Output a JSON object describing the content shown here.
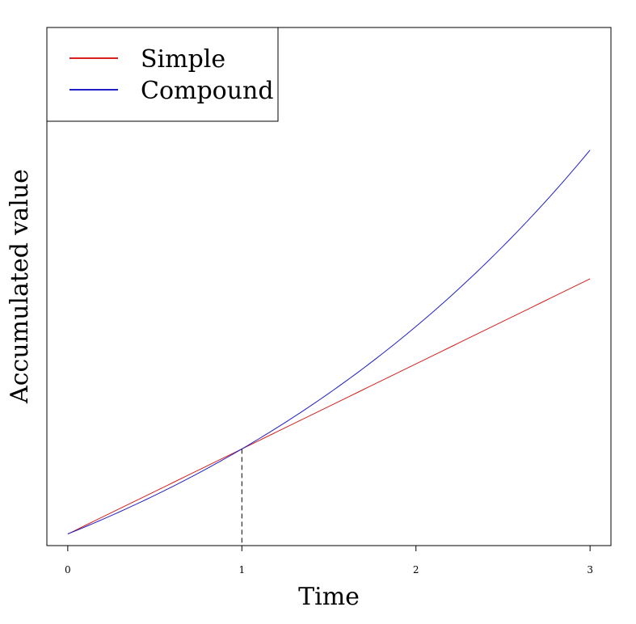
{
  "chart_data": {
    "type": "line",
    "xlabel": "Time",
    "ylabel": "Accumulated value",
    "xlim": [
      -0.12,
      3.12
    ],
    "ylim": [
      0.94,
      3.62
    ],
    "x_ticks": [
      0,
      1,
      2,
      3
    ],
    "x_tick_labels": [
      "0",
      "1",
      "2",
      "3"
    ],
    "y_ticks_shown": false,
    "grid": false,
    "legend_position": "top-left",
    "series": [
      {
        "name": "Simple",
        "color": "#d62020",
        "formula": "1 + r*t",
        "x": [
          0,
          1,
          2,
          3
        ],
        "y": [
          1.0,
          1.44,
          1.88,
          2.32
        ]
      },
      {
        "name": "Compound",
        "color": "#2020c8",
        "formula": "(1 + r)^t",
        "x": [
          0,
          0.5,
          1,
          1.5,
          2,
          2.5,
          3
        ],
        "y": [
          1.0,
          1.2,
          1.44,
          1.728,
          2.0736,
          2.4883,
          2.986
        ]
      }
    ],
    "reference_line": {
      "x": 1,
      "y": 1.44,
      "style": "dashed"
    },
    "rate": 0.44
  }
}
